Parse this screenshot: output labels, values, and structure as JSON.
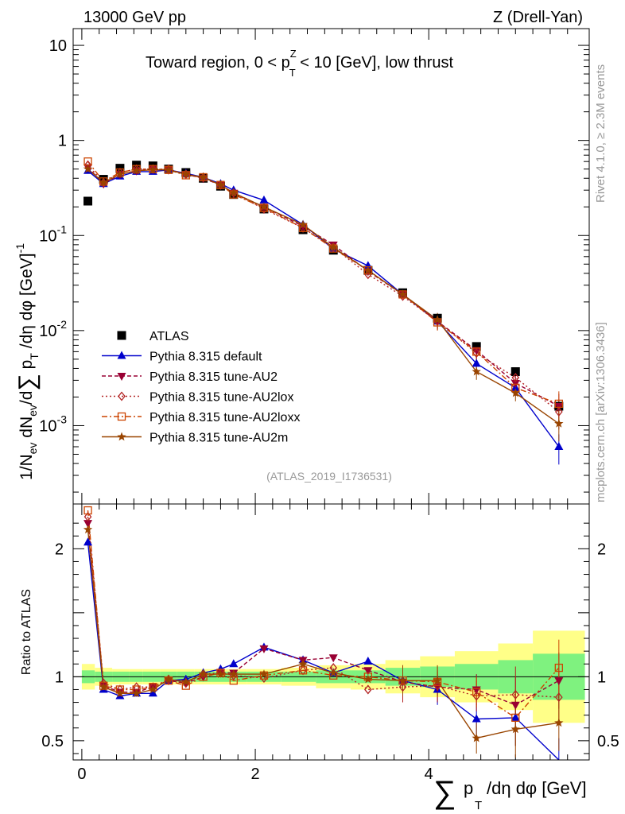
{
  "header": {
    "left": "13000 GeV pp",
    "right": "Z (Drell-Yan)",
    "subtitle": "Toward region, 0 < pT^Z < 10 [GeV], low thrust",
    "subtitle_main": "Toward region, 0 < p",
    "subtitle_sup": "Z",
    "subtitle_sub": "T",
    "subtitle_tail": " < 10 [GeV], low thrust",
    "side_top": "Rivet 4.1.0, ≥ 2.3M events",
    "side_bottom": "mcplots.cern.ch [arXiv:1306.3436]",
    "watermark": "(ATLAS_2019_I1736531)"
  },
  "axes": {
    "ylabel_top": "1/N_ev dN_ev/d∑ p_T /dη dφ [GeV]^-1",
    "ylabel_ratio": "Ratio to ATLAS",
    "xlabel": "∑ p_T /dη dφ [GeV]",
    "xlabel_text": "/dη dφ [GeV]",
    "xlabel_p": "p",
    "xlabel_T": "T",
    "xlabel_sum": "∑"
  },
  "colors": {
    "atlas": "#000000",
    "default": "#0000cc",
    "au2": "#990033",
    "au2lox": "#b22222",
    "au2loxx": "#cc4400",
    "au2m": "#994400",
    "band_inner": "#7ff27f",
    "band_outer": "#ffff88"
  },
  "chart_data": [
    {
      "type": "scatter",
      "title": "Toward region, 0 < pT^Z < 10 [GeV], low thrust",
      "xlabel": "∑ pT /dη dφ [GeV]",
      "ylabel": "1/Nev dNev/d∑ pT /dη dφ [GeV]^-1",
      "yscale": "log",
      "xlim": [
        -0.1,
        5.85
      ],
      "ylim": [
        0.00015,
        15
      ],
      "yticks": [
        {
          "value": 10,
          "label": "10"
        },
        {
          "value": 1,
          "label": "1"
        },
        {
          "value": 0.1,
          "label": "10^-1"
        },
        {
          "value": 0.01,
          "label": "10^-2"
        },
        {
          "value": 0.001,
          "label": "10^-3"
        }
      ],
      "x": [
        0.07,
        0.25,
        0.44,
        0.63,
        0.82,
        1.0,
        1.2,
        1.4,
        1.6,
        1.75,
        2.1,
        2.55,
        2.9,
        3.3,
        3.7,
        4.1,
        4.55,
        5.0,
        5.5
      ],
      "series": [
        {
          "name": "ATLAS",
          "marker": "square",
          "values": [
            0.23,
            0.39,
            0.51,
            0.55,
            0.54,
            0.5,
            0.46,
            0.4,
            0.33,
            0.27,
            0.19,
            0.115,
            0.07,
            0.043,
            0.025,
            0.0135,
            0.0068,
            0.0037,
            0.0016
          ]
        },
        {
          "name": "Pythia 8.315 default",
          "marker": "triangle-up",
          "values": [
            0.48,
            0.35,
            0.42,
            0.47,
            0.47,
            0.49,
            0.45,
            0.41,
            0.35,
            0.3,
            0.235,
            0.13,
            0.072,
            0.048,
            0.024,
            0.0125,
            0.0045,
            0.0025,
            0.0006
          ]
        },
        {
          "name": "Pythia 8.315 tune-AU2",
          "marker": "triangle-down",
          "values": [
            0.52,
            0.35,
            0.44,
            0.48,
            0.5,
            0.49,
            0.44,
            0.4,
            0.34,
            0.28,
            0.2,
            0.125,
            0.08,
            0.042,
            0.024,
            0.0125,
            0.0062,
            0.0028,
            0.0016
          ]
        },
        {
          "name": "Pythia 8.315 tune-AU2lox",
          "marker": "diamond-open",
          "values": [
            0.55,
            0.36,
            0.46,
            0.5,
            0.5,
            0.5,
            0.44,
            0.41,
            0.34,
            0.28,
            0.19,
            0.12,
            0.075,
            0.039,
            0.023,
            0.0125,
            0.0058,
            0.0032,
            0.0014
          ]
        },
        {
          "name": "Pythia 8.315 tune-AU2loxx",
          "marker": "square-open",
          "values": [
            0.6,
            0.37,
            0.46,
            0.5,
            0.5,
            0.49,
            0.43,
            0.41,
            0.34,
            0.27,
            0.195,
            0.12,
            0.073,
            0.043,
            0.024,
            0.0122,
            0.006,
            0.0025,
            0.0017
          ]
        },
        {
          "name": "Pythia 8.315 tune-AU2m",
          "marker": "star",
          "values": [
            0.5,
            0.36,
            0.44,
            0.48,
            0.49,
            0.49,
            0.44,
            0.41,
            0.34,
            0.28,
            0.2,
            0.13,
            0.075,
            0.043,
            0.024,
            0.013,
            0.0037,
            0.0022,
            0.00105
          ]
        }
      ]
    },
    {
      "type": "line",
      "ylabel": "Ratio to ATLAS",
      "xlabel": "∑ pT /dη dφ [GeV]",
      "xlim": [
        -0.1,
        5.85
      ],
      "ylim": [
        0.35,
        2.35
      ],
      "yticks": [
        {
          "value": 0.5,
          "label": "0.5"
        },
        {
          "value": 1,
          "label": "1"
        },
        {
          "value": 2,
          "label": "2"
        }
      ],
      "xticks": [
        {
          "value": 0,
          "label": "0"
        },
        {
          "value": 2,
          "label": "2"
        },
        {
          "value": 4,
          "label": "4"
        }
      ],
      "x": [
        0.07,
        0.25,
        0.44,
        0.63,
        0.82,
        1.0,
        1.2,
        1.4,
        1.6,
        1.75,
        2.1,
        2.55,
        2.9,
        3.3,
        3.7,
        4.1,
        4.55,
        5.0,
        5.5
      ],
      "bands": {
        "edges": [
          0,
          0.15,
          0.35,
          0.55,
          0.7,
          0.9,
          1.1,
          1.3,
          1.5,
          1.7,
          1.9,
          2.3,
          2.7,
          3.1,
          3.5,
          3.9,
          4.3,
          4.8,
          5.2,
          5.8
        ],
        "inner": [
          0.05,
          0.04,
          0.04,
          0.04,
          0.04,
          0.04,
          0.04,
          0.04,
          0.04,
          0.04,
          0.04,
          0.04,
          0.05,
          0.05,
          0.07,
          0.08,
          0.1,
          0.13,
          0.18
        ],
        "outer": [
          0.1,
          0.07,
          0.06,
          0.06,
          0.06,
          0.06,
          0.06,
          0.06,
          0.06,
          0.06,
          0.06,
          0.07,
          0.09,
          0.1,
          0.13,
          0.16,
          0.2,
          0.26,
          0.36
        ]
      },
      "series": [
        {
          "name": "Pythia 8.315 default",
          "values": [
            2.05,
            0.9,
            0.85,
            0.87,
            0.87,
            0.97,
            0.98,
            1.03,
            1.06,
            1.1,
            1.23,
            1.13,
            1.03,
            1.12,
            0.97,
            0.9,
            0.67,
            0.68,
            0.3
          ]
        },
        {
          "name": "Pythia 8.315 tune-AU2",
          "values": [
            2.2,
            0.93,
            0.88,
            0.88,
            0.92,
            0.97,
            0.95,
            1.0,
            1.03,
            1.03,
            1.22,
            1.13,
            1.15,
            1.05,
            0.96,
            0.92,
            0.9,
            0.78,
            0.97
          ]
        },
        {
          "name": "Pythia 8.315 tune-AU2lox",
          "values": [
            2.25,
            0.95,
            0.9,
            0.92,
            0.92,
            0.98,
            0.95,
            1.02,
            1.03,
            1.01,
            0.99,
            1.05,
            1.07,
            0.9,
            0.92,
            0.93,
            0.85,
            0.86,
            0.84
          ]
        },
        {
          "name": "Pythia 8.315 tune-AU2loxx",
          "values": [
            2.3,
            0.93,
            0.9,
            0.9,
            0.92,
            0.97,
            0.93,
            1.0,
            1.03,
            0.97,
            1.01,
            1.05,
            1.01,
            1.0,
            0.97,
            0.96,
            0.88,
            0.68,
            1.07
          ]
        },
        {
          "name": "Pythia 8.315 tune-AU2m",
          "values": [
            2.15,
            0.92,
            0.87,
            0.87,
            0.9,
            0.98,
            0.96,
            1.02,
            1.02,
            1.02,
            1.02,
            1.1,
            1.03,
            0.98,
            0.97,
            0.97,
            0.52,
            0.59,
            0.64
          ]
        }
      ]
    }
  ]
}
